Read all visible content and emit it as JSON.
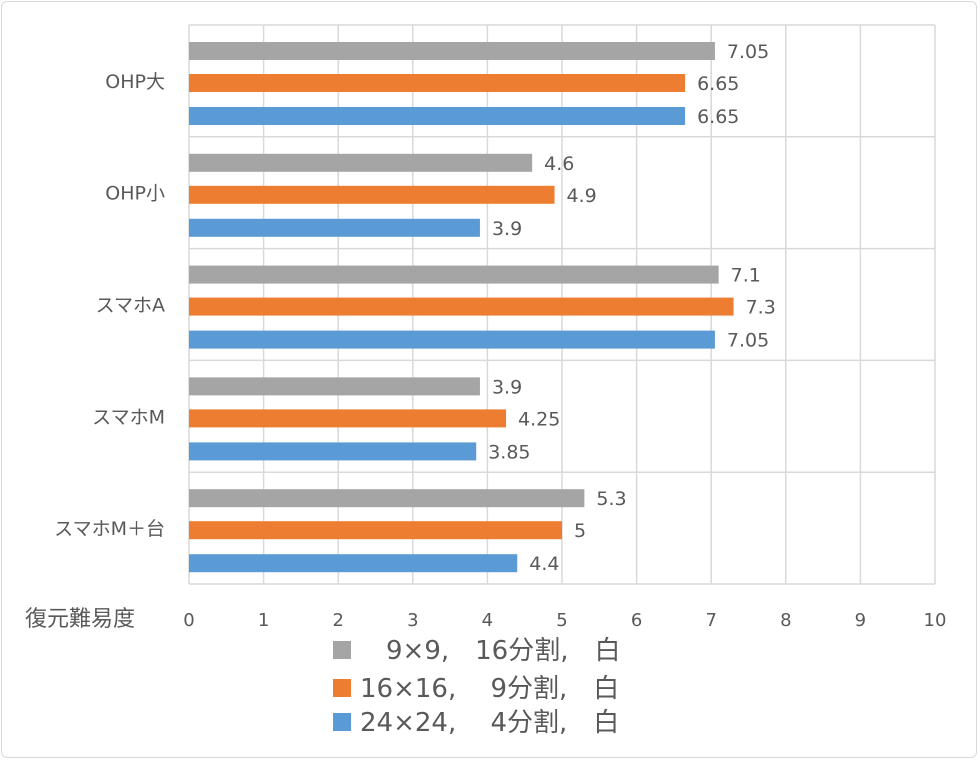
{
  "chart_data": {
    "type": "bar",
    "orientation": "horizontal",
    "categories": [
      "OHP大",
      "OHP小",
      "スマホA",
      "スマホM",
      "スマホM＋台"
    ],
    "series": [
      {
        "name": "　9×9,　16分割,　白",
        "color": "#A5A5A5",
        "values": [
          7.05,
          4.6,
          7.1,
          3.9,
          5.3
        ]
      },
      {
        "name": "16×16,　 9分割,　白",
        "color": "#ED7D31",
        "values": [
          6.65,
          4.9,
          7.3,
          4.25,
          5
        ]
      },
      {
        "name": "24×24,　 4分割,　白",
        "color": "#5B9BD5",
        "values": [
          6.65,
          3.9,
          7.05,
          3.85,
          4.4
        ]
      }
    ],
    "xlabel": "復元難易度",
    "xlim": [
      0,
      10
    ],
    "xticks": [
      "0",
      "1",
      "2",
      "3",
      "4",
      "5",
      "6",
      "7",
      "8",
      "9",
      "10"
    ],
    "grid": true,
    "data_labels": true,
    "legend_placement": "bottom"
  }
}
